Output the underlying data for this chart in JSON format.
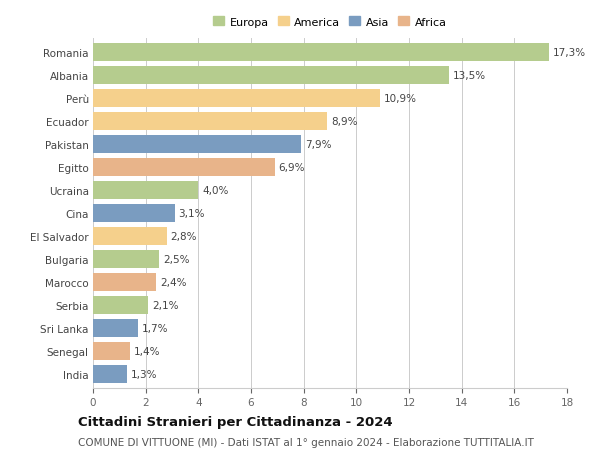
{
  "countries": [
    "Romania",
    "Albania",
    "Perù",
    "Ecuador",
    "Pakistan",
    "Egitto",
    "Ucraina",
    "Cina",
    "El Salvador",
    "Bulgaria",
    "Marocco",
    "Serbia",
    "Sri Lanka",
    "Senegal",
    "India"
  ],
  "values": [
    17.3,
    13.5,
    10.9,
    8.9,
    7.9,
    6.9,
    4.0,
    3.1,
    2.8,
    2.5,
    2.4,
    2.1,
    1.7,
    1.4,
    1.3
  ],
  "labels": [
    "17,3%",
    "13,5%",
    "10,9%",
    "8,9%",
    "7,9%",
    "6,9%",
    "4,0%",
    "3,1%",
    "2,8%",
    "2,5%",
    "2,4%",
    "2,1%",
    "1,7%",
    "1,4%",
    "1,3%"
  ],
  "continents": [
    "Europa",
    "Europa",
    "America",
    "America",
    "Asia",
    "Africa",
    "Europa",
    "Asia",
    "America",
    "Europa",
    "Africa",
    "Europa",
    "Asia",
    "Africa",
    "Asia"
  ],
  "continent_colors": {
    "Europa": "#b5cc8e",
    "America": "#f5d08c",
    "Asia": "#7a9cc0",
    "Africa": "#e8b48a"
  },
  "legend_order": [
    "Europa",
    "America",
    "Asia",
    "Africa"
  ],
  "xlim": [
    0,
    18
  ],
  "xticks": [
    0,
    2,
    4,
    6,
    8,
    10,
    12,
    14,
    16,
    18
  ],
  "title": "Cittadini Stranieri per Cittadinanza - 2024",
  "subtitle": "COMUNE DI VITTUONE (MI) - Dati ISTAT al 1° gennaio 2024 - Elaborazione TUTTITALIA.IT",
  "background_color": "#ffffff",
  "grid_color": "#cccccc",
  "bar_height": 0.78,
  "label_fontsize": 7.5,
  "tick_fontsize": 7.5,
  "title_fontsize": 9.5,
  "subtitle_fontsize": 7.5
}
